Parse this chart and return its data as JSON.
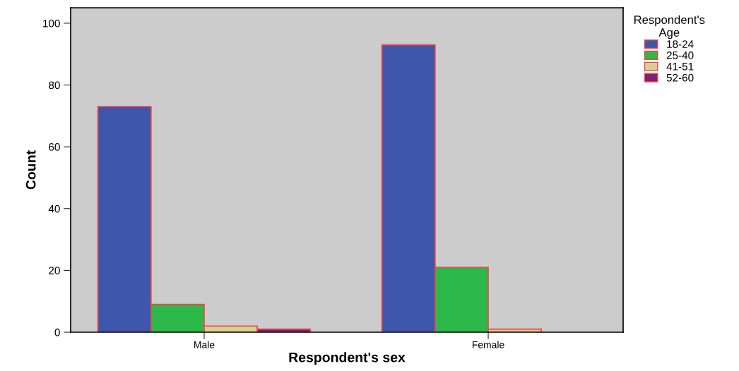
{
  "chart_data": {
    "type": "bar",
    "xlabel": "Respondent's sex",
    "ylabel": "Count",
    "legend_title": "Respondent's\nAge",
    "categories": [
      "Male",
      "Female"
    ],
    "series": [
      {
        "name": "18-24",
        "color": "#3e56ac",
        "values": [
          73,
          93
        ]
      },
      {
        "name": "25-40",
        "color": "#2db84a",
        "values": [
          9,
          21
        ]
      },
      {
        "name": "41-51",
        "color": "#d8cf94",
        "values": [
          2,
          1
        ]
      },
      {
        "name": "52-60",
        "color": "#7c2277",
        "values": [
          1,
          null
        ]
      }
    ],
    "ylim": [
      0,
      105
    ],
    "yticks": [
      0,
      20,
      40,
      60,
      80,
      100
    ],
    "grid": false,
    "legend": "top right"
  }
}
